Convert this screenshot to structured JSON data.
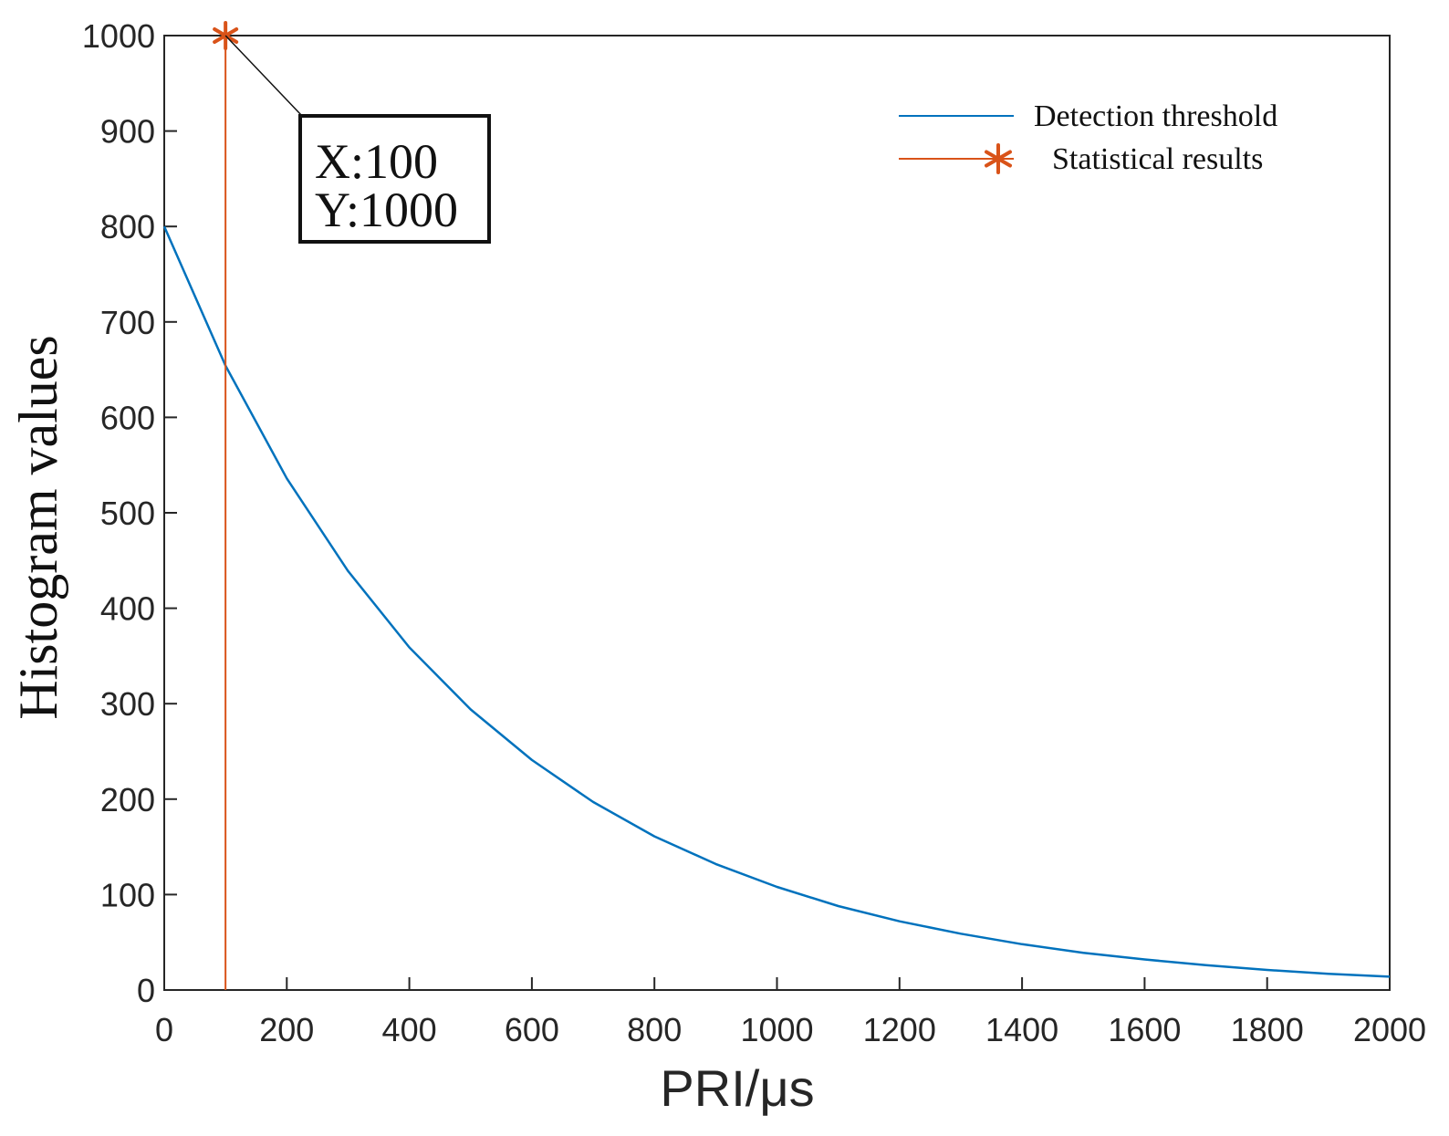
{
  "chart_data": {
    "type": "line",
    "xlabel": "PRI/μs",
    "ylabel": "Histogram values",
    "xlim": [
      0,
      2000
    ],
    "ylim": [
      0,
      1000
    ],
    "xticks": [
      0,
      200,
      400,
      600,
      800,
      1000,
      1200,
      1400,
      1600,
      1800,
      2000
    ],
    "yticks": [
      0,
      100,
      200,
      300,
      400,
      500,
      600,
      700,
      800,
      900,
      1000
    ],
    "grid": false,
    "legend_position": "top-right",
    "series": [
      {
        "name": "Detection threshold",
        "kind": "line",
        "color": "#0072BD",
        "x": [
          0,
          100,
          200,
          300,
          400,
          500,
          600,
          700,
          800,
          900,
          1000,
          1100,
          1200,
          1300,
          1400,
          1500,
          1600,
          1700,
          1800,
          1900,
          2000
        ],
        "y": [
          800,
          654,
          536,
          439,
          359,
          294,
          241,
          197,
          161,
          132,
          108,
          88,
          72,
          59,
          48,
          39,
          32,
          26,
          21,
          17,
          14
        ]
      },
      {
        "name": "Statistical results",
        "kind": "stem",
        "color": "#D95319",
        "marker": "asterisk",
        "x": [
          100
        ],
        "y": [
          1000
        ]
      }
    ],
    "annotation": {
      "x_text": "X:100",
      "y_text": "Y:1000",
      "target": {
        "x": 100,
        "y": 1000
      }
    }
  }
}
